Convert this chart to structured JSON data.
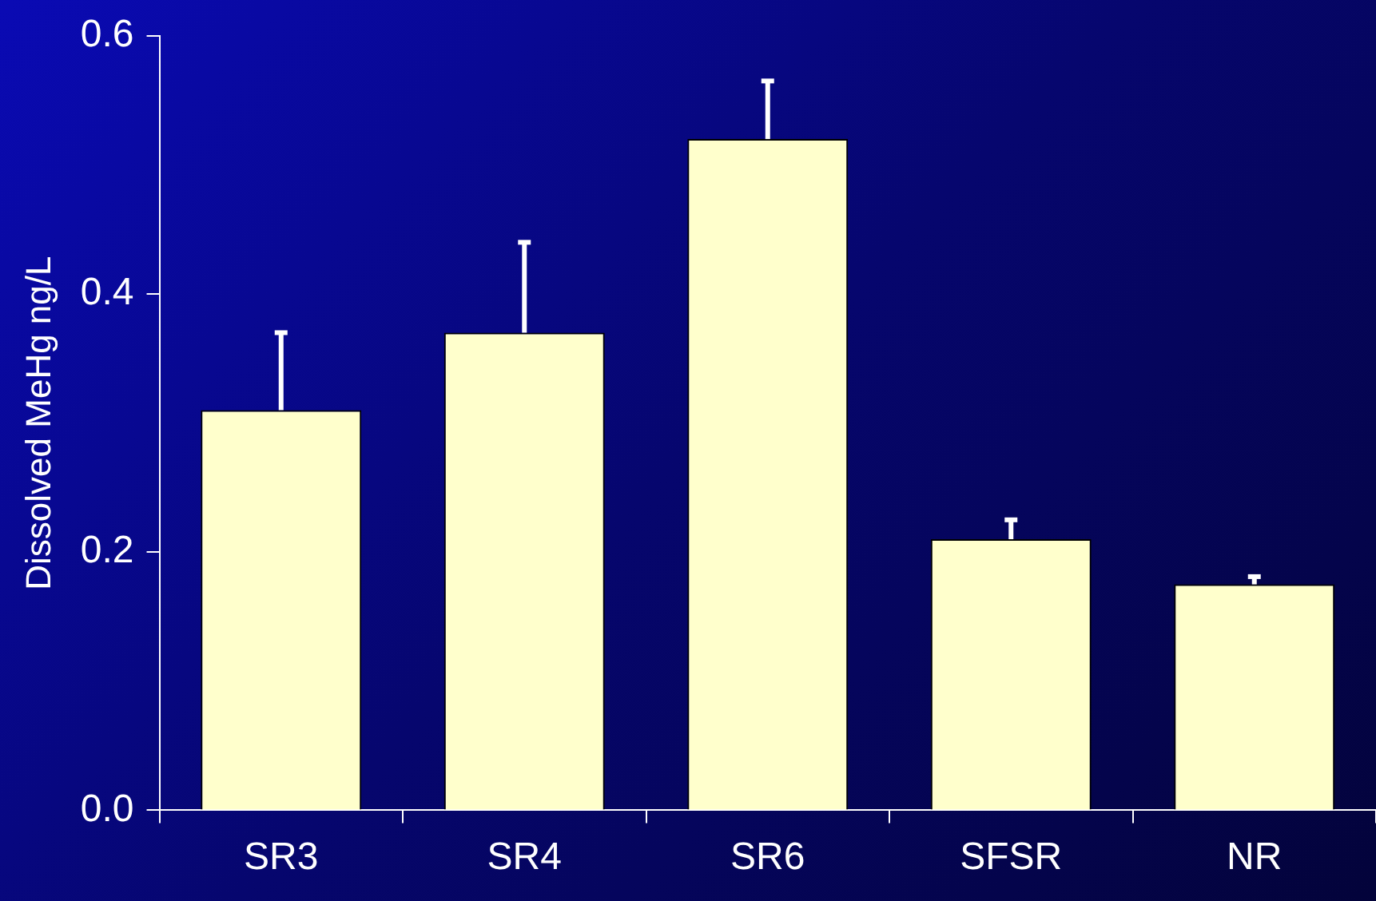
{
  "chart_data": {
    "type": "bar",
    "ylabel": "Dissolved MeHg ng/L",
    "categories": [
      "SR3",
      "SR4",
      "SR6",
      "SFSR",
      "NR"
    ],
    "values": [
      0.31,
      0.37,
      0.52,
      0.21,
      0.175
    ],
    "errors": [
      [
        0.31,
        0.37
      ],
      [
        0.37,
        0.44
      ],
      [
        0.52,
        0.565
      ],
      [
        0.21,
        0.225
      ],
      [
        0.175,
        0.181
      ]
    ],
    "color": "#ffffcc",
    "ylim": [
      0,
      0.6
    ],
    "yticks": [
      {
        "value": 0,
        "label": "0.0"
      },
      {
        "value": 0.2,
        "label": "0.2"
      },
      {
        "value": 0.4,
        "label": "0.4"
      },
      {
        "value": 0.6,
        "label": "0.6"
      }
    ],
    "grid": false,
    "legend": false
  }
}
